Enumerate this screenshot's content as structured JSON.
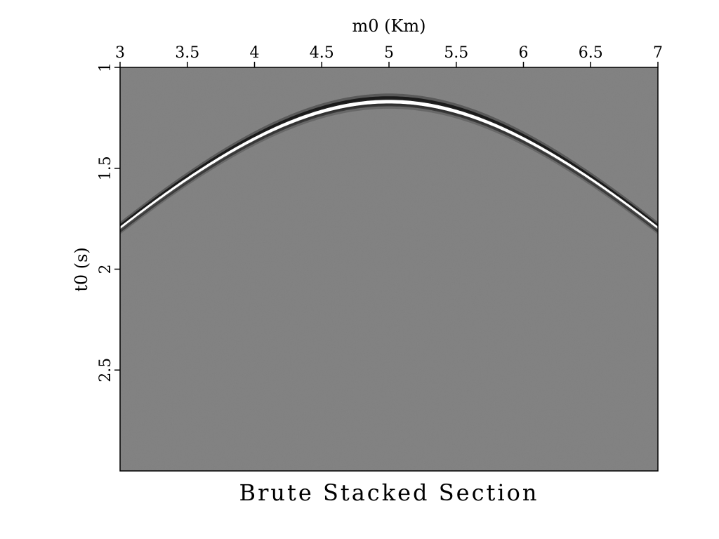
{
  "chart_data": {
    "type": "heatmap",
    "title": "Brute Stacked Section",
    "xlabel": "m0 (Km)",
    "ylabel": "t0 (s)",
    "xlim": [
      3,
      7
    ],
    "ylim": [
      3,
      1
    ],
    "x_ticks": [
      "3",
      "3.5",
      "4",
      "4.5",
      "5",
      "5.5",
      "6",
      "6.5",
      "7"
    ],
    "y_ticks": [
      "1",
      "1.5",
      "2",
      "2.5"
    ],
    "x_axis_position": "top",
    "y_axis_inverted": true,
    "colormap": "grayscale",
    "background_color": "#808080",
    "event": {
      "shape": "hyperbola",
      "apex_m0": 5.0,
      "apex_t0": 1.17,
      "edge_t0_at_m0_3": 1.8,
      "edge_t0_at_m0_7": 1.8,
      "polarity": "white peak with dark side lobes"
    }
  }
}
